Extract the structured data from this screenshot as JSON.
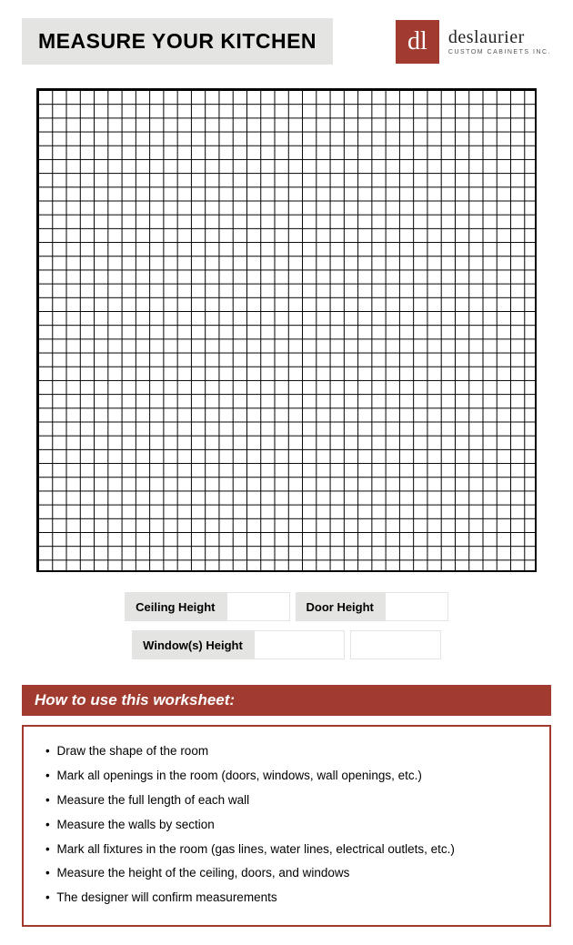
{
  "header": {
    "title": "MEASURE YOUR KITCHEN",
    "title_bg": "#e4e4e2",
    "title_fontsize": 23
  },
  "logo": {
    "mark_text": "dl",
    "mark_bg": "#a13b30",
    "mark_color": "#ffffff",
    "name": "deslaurier",
    "subtitle": "CUSTOM CABINETS INC."
  },
  "grid": {
    "cols": 36,
    "rows": 35,
    "border_color": "#000000",
    "line_color": "#000000",
    "background_color": "#ffffff"
  },
  "fields": {
    "ceiling_height": {
      "label": "Ceiling Height",
      "value": "",
      "input_width": 70
    },
    "door_height": {
      "label": "Door Height",
      "value": "",
      "input_width": 70
    },
    "window_height": {
      "label": "Window(s) Height",
      "value": "",
      "input_width": 100,
      "extra_input_width": 100
    }
  },
  "howto": {
    "heading": "How to use this worksheet:",
    "bar_bg": "#a13b30",
    "bar_color": "#ffffff",
    "box_border": "#a13b30",
    "items": [
      "Draw the shape of the room",
      "Mark all openings in the room (doors, windows, wall openings, etc.)",
      "Measure the full length of each wall",
      "Measure the walls by section",
      "Mark all fixtures in the room (gas lines, water lines, electrical outlets, etc.)",
      "Measure the height of the ceiling, doors, and windows",
      "The designer will confirm measurements"
    ]
  },
  "colors": {
    "accent": "#a13b30",
    "light_gray": "#e4e4e2",
    "text": "#000000",
    "page_bg": "#ffffff"
  }
}
